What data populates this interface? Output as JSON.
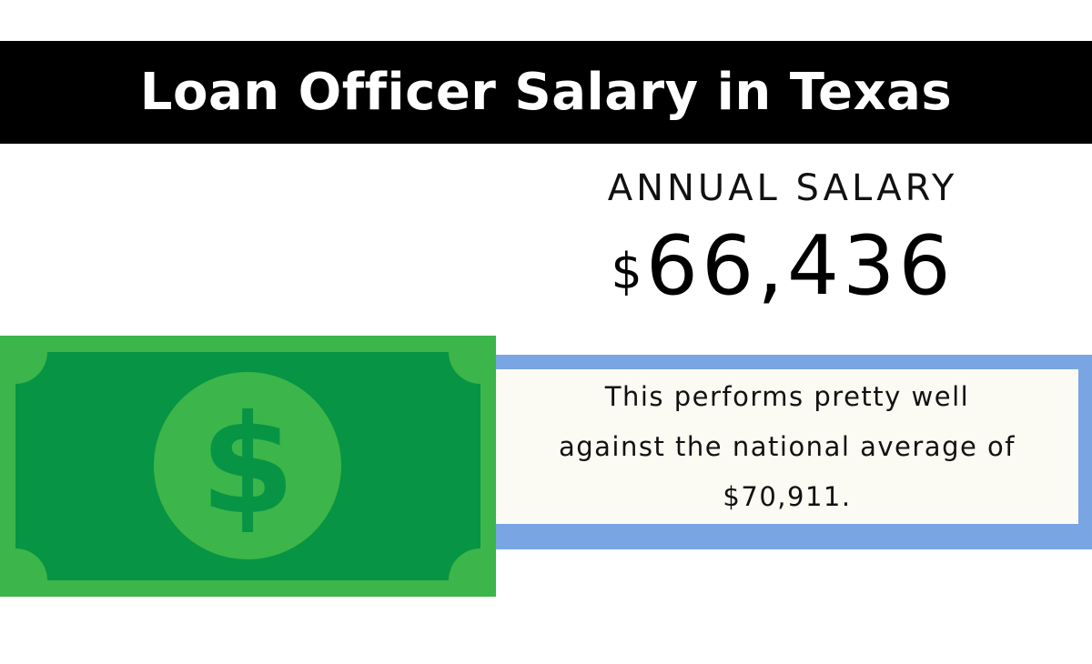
{
  "header": {
    "title": "Loan Officer Salary in Texas"
  },
  "salary": {
    "label": "ANNUAL SALARY",
    "currency_symbol": "$",
    "amount": "66,436"
  },
  "comparison": {
    "line1": "This performs pretty well",
    "line2": "against the national average of",
    "line3": "$70,911."
  },
  "bill": {
    "symbol": "$",
    "icon": "dollar-bill-icon"
  },
  "colors": {
    "title_bar": "#000000",
    "bill_light": "#3cb54a",
    "bill_dark": "#089445",
    "box_border": "#79a5e3",
    "box_fill": "#fbfaf3"
  }
}
